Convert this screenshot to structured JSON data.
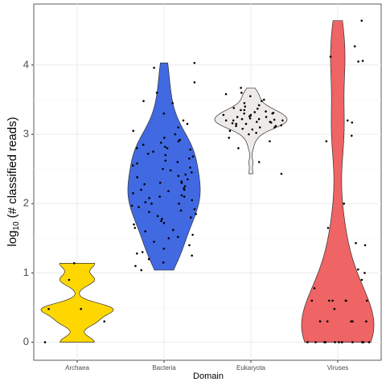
{
  "chart_data": {
    "type": "violin",
    "categories": [
      "Archaea",
      "Bacteria",
      "Eukaryota",
      "Viruses"
    ],
    "colors": [
      "#FFD700",
      "#4169E1",
      "#EEEAE7",
      "#EF6464"
    ],
    "x_label": "Domain",
    "y_label": {
      "prefix": "log",
      "subscript": "10",
      "suffix": " (# classified reads)"
    },
    "ylim": [
      -0.26,
      4.88
    ],
    "yticks": [
      0,
      1,
      2,
      3,
      4
    ],
    "grid": true,
    "values": [
      [
        0,
        0.3,
        0.48,
        0.48,
        0.9,
        1.14
      ],
      [
        1.04,
        1.1,
        1.15,
        1.2,
        1.25,
        1.28,
        1.3,
        1.35,
        1.4,
        1.45,
        1.5,
        1.52,
        1.55,
        1.6,
        1.62,
        1.65,
        1.7,
        1.72,
        1.75,
        1.78,
        1.8,
        1.82,
        1.85,
        1.88,
        1.9,
        1.92,
        1.95,
        1.97,
        2.0,
        2.0,
        2.02,
        2.05,
        2.08,
        2.1,
        2.1,
        2.12,
        2.15,
        2.18,
        2.2,
        2.2,
        2.22,
        2.25,
        2.28,
        2.3,
        2.3,
        2.32,
        2.35,
        2.38,
        2.4,
        2.42,
        2.45,
        2.48,
        2.5,
        2.52,
        2.55,
        2.58,
        2.6,
        2.62,
        2.65,
        2.68,
        2.7,
        2.72,
        2.75,
        2.78,
        2.8,
        2.8,
        2.82,
        2.85,
        2.88,
        2.9,
        2.92,
        2.95,
        3.0,
        3.05,
        3.1,
        3.15,
        3.2,
        3.3,
        3.45,
        3.48,
        3.6,
        3.75,
        3.96,
        4.03
      ],
      [
        2.43,
        2.6,
        2.8,
        2.9,
        2.95,
        3.0,
        3.02,
        3.05,
        3.07,
        3.08,
        3.1,
        3.1,
        3.12,
        3.12,
        3.13,
        3.15,
        3.15,
        3.16,
        3.17,
        3.18,
        3.18,
        3.2,
        3.2,
        3.2,
        3.21,
        3.22,
        3.22,
        3.23,
        3.25,
        3.25,
        3.26,
        3.27,
        3.28,
        3.28,
        3.3,
        3.3,
        3.31,
        3.32,
        3.33,
        3.35,
        3.35,
        3.37,
        3.38,
        3.4,
        3.42,
        3.45,
        3.48,
        3.5,
        3.55,
        3.58,
        3.6,
        3.67
      ],
      [
        0,
        0,
        0,
        0,
        0,
        0,
        0,
        0,
        0,
        0,
        0,
        0,
        0,
        0,
        0.3,
        0.3,
        0.3,
        0.3,
        0.3,
        0.48,
        0.6,
        0.6,
        0.6,
        0.6,
        0.6,
        0.6,
        0.78,
        0.9,
        1.0,
        1.05,
        1.4,
        1.43,
        1.65,
        2.0,
        2.9,
        2.98,
        3.17,
        3.2,
        4.05,
        4.06,
        4.12,
        4.27,
        4.64
      ]
    ]
  }
}
